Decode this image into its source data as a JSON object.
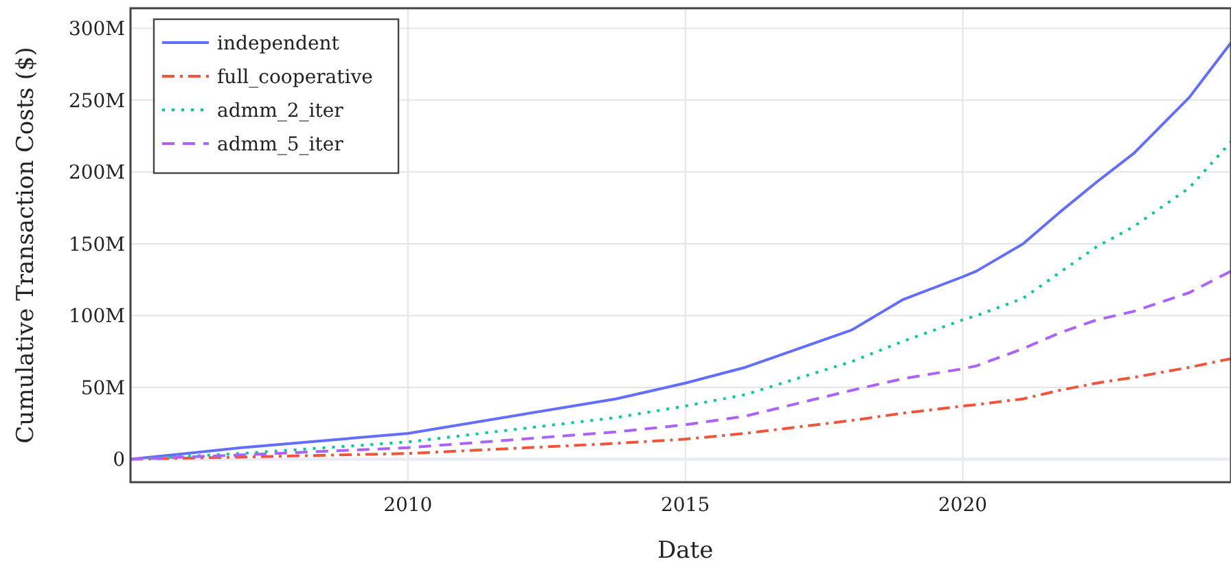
{
  "chart_data": {
    "type": "line",
    "xlabel": "Date",
    "ylabel": "Cumulative Transaction Costs ($)",
    "x": [
      "2005-01",
      "2007-01",
      "2010-01",
      "2013-10",
      "2015-01",
      "2016-02",
      "2018-01",
      "2018-12",
      "2020-01",
      "2020-04",
      "2021-02",
      "2021-10",
      "2022-06",
      "2023-02",
      "2024-02",
      "2024-11"
    ],
    "series": [
      {
        "name": "independent",
        "color": "#636efa",
        "line_style": "solid",
        "values": [
          0,
          8000000,
          18000000,
          42000000,
          53000000,
          64000000,
          90000000,
          111000000,
          127000000,
          131000000,
          150000000,
          172000000,
          193000000,
          213000000,
          252000000,
          290000000
        ]
      },
      {
        "name": "full_cooperative",
        "color": "#ef553b",
        "line_style": "dashdot",
        "values": [
          0,
          1500000,
          4000000,
          11000000,
          14000000,
          18000000,
          27000000,
          32000000,
          37000000,
          38000000,
          42000000,
          48000000,
          53000000,
          57000000,
          64000000,
          70000000
        ]
      },
      {
        "name": "admm_2_iter",
        "color": "#00cc96",
        "line_style": "dotted",
        "values": [
          0,
          4000000,
          12000000,
          29000000,
          37000000,
          45000000,
          68000000,
          82000000,
          97000000,
          100000000,
          112000000,
          130000000,
          148000000,
          162000000,
          189000000,
          221000000
        ]
      },
      {
        "name": "admm_5_iter",
        "color": "#ab63fa",
        "line_style": "dashed",
        "values": [
          0,
          3000000,
          8000000,
          19000000,
          24000000,
          30000000,
          48000000,
          56000000,
          63000000,
          65000000,
          77000000,
          88000000,
          97000000,
          103000000,
          116000000,
          131000000
        ]
      }
    ],
    "xlim": [
      "2005-01-01",
      "2024-11-01"
    ],
    "xticks": [
      {
        "value": "2010-01-01",
        "label": "2010"
      },
      {
        "value": "2015-01-01",
        "label": "2015"
      },
      {
        "value": "2020-01-01",
        "label": "2020"
      }
    ],
    "ylim": [
      -16000000,
      314000000
    ],
    "yticks": [
      {
        "value": 0,
        "label": "0"
      },
      {
        "value": 50000000,
        "label": "50M"
      },
      {
        "value": 100000000,
        "label": "100M"
      },
      {
        "value": 150000000,
        "label": "150M"
      },
      {
        "value": 200000000,
        "label": "200M"
      },
      {
        "value": 250000000,
        "label": "250M"
      },
      {
        "value": 300000000,
        "label": "300M"
      }
    ],
    "grid": true,
    "legend": "top left",
    "marker": "none"
  }
}
